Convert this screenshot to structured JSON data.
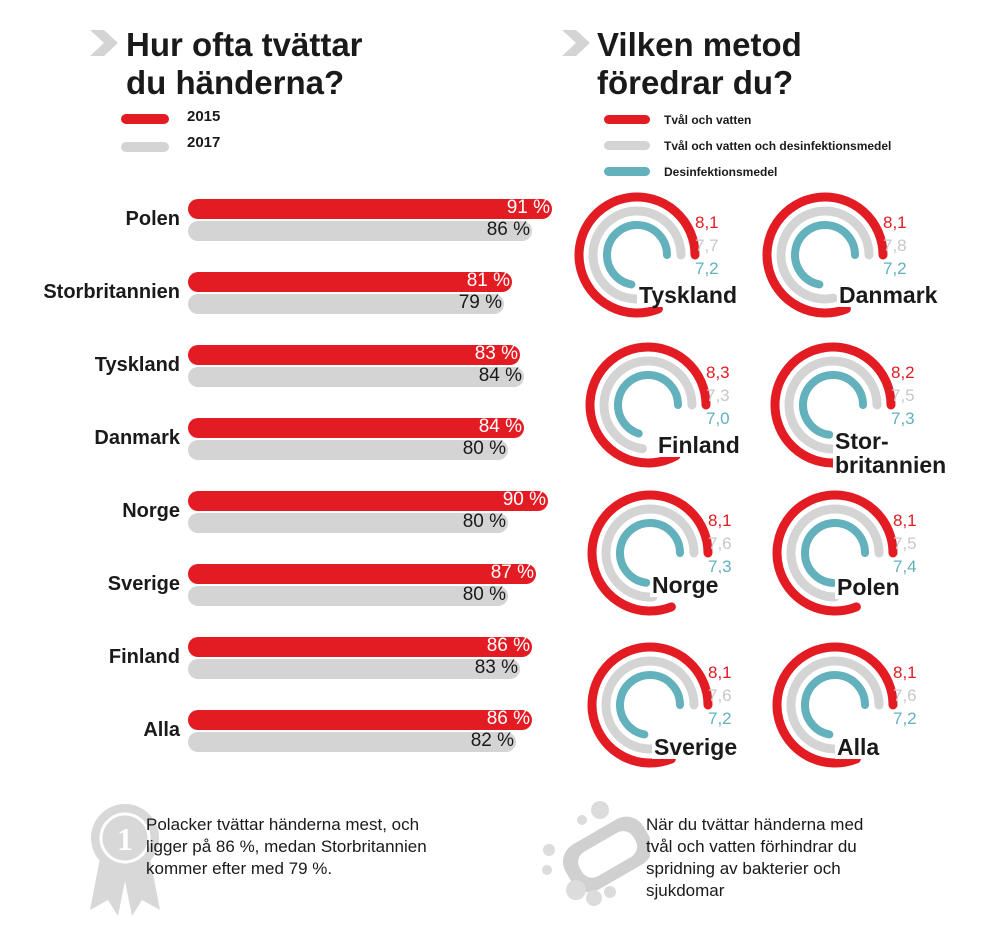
{
  "left_title": [
    "Hur ofta tvättar",
    "du händerna?"
  ],
  "right_title": [
    "Vilken metod",
    "föredrar du?"
  ],
  "colors": {
    "red": "#e31b23",
    "gray": "#d4d4d4",
    "teal": "#62b1bc",
    "text": "#1a1a1a"
  },
  "chart_data": [
    {
      "type": "bar",
      "title": "Hur ofta tvättar du händerna?",
      "categories": [
        "Polen",
        "Storbritannien",
        "Tyskland",
        "Danmark",
        "Norge",
        "Sverige",
        "Finland",
        "Alla"
      ],
      "series": [
        {
          "name": "2015",
          "values": [
            91,
            81,
            83,
            84,
            90,
            87,
            86,
            86
          ],
          "labels": [
            "91 %",
            "81 %",
            "83 %",
            "84 %",
            "90 %",
            "87 %",
            "86 %",
            "86 %"
          ]
        },
        {
          "name": "2017",
          "values": [
            86,
            79,
            84,
            80,
            80,
            80,
            83,
            82
          ],
          "labels": [
            "86 %",
            "79 %",
            "84 %",
            "80 %",
            "80 %",
            "80 %",
            "83 %",
            "82 %"
          ]
        }
      ],
      "xlim": [
        0,
        100
      ],
      "legend_position": "top-left"
    },
    {
      "type": "radial-bar",
      "title": "Vilken metod föredrar du?",
      "series_names": [
        "Tvål och vatten",
        "Tvål och vatten och desinfektionsmedel",
        "Desinfektionsmedel"
      ],
      "scale_max": 10,
      "panels": [
        {
          "name": [
            "Tyskland"
          ],
          "values": [
            8.1,
            7.7,
            7.2
          ],
          "labels": [
            "8,1",
            "7,7",
            "7,2"
          ]
        },
        {
          "name": [
            "Danmark"
          ],
          "values": [
            8.1,
            7.8,
            7.2
          ],
          "labels": [
            "8,1",
            "7,8",
            "7,2"
          ]
        },
        {
          "name": [
            "Finland"
          ],
          "values": [
            8.3,
            7.3,
            7.0
          ],
          "labels": [
            "8,3",
            "7,3",
            "7,0"
          ]
        },
        {
          "name": [
            "Stor-",
            "britannien"
          ],
          "values": [
            8.2,
            7.5,
            7.3
          ],
          "labels": [
            "8,2",
            "7,5",
            "7,3"
          ]
        },
        {
          "name": [
            "Norge"
          ],
          "values": [
            8.1,
            7.6,
            7.3
          ],
          "labels": [
            "8,1",
            "7,6",
            "7,3"
          ]
        },
        {
          "name": [
            "Polen"
          ],
          "values": [
            8.1,
            7.5,
            7.4
          ],
          "labels": [
            "8,1",
            "7,5",
            "7,4"
          ]
        },
        {
          "name": [
            "Sverige"
          ],
          "values": [
            8.1,
            7.6,
            7.2
          ],
          "labels": [
            "8,1",
            "7,6",
            "7,2"
          ]
        },
        {
          "name": [
            "Alla"
          ],
          "values": [
            8.1,
            7.6,
            7.2
          ],
          "labels": [
            "8,1",
            "7,6",
            "7,2"
          ]
        }
      ],
      "legend_position": "top"
    }
  ],
  "notes": {
    "left": [
      "Polacker tvättar händerna mest, och",
      "ligger på 86 %, medan Storbritannien",
      "kommer efter med 79 %."
    ],
    "right": [
      "När du tvättar händerna med",
      "tvål och vatten förhindrar du",
      "spridning av bakterier och",
      "sjukdomar"
    ]
  },
  "icons": {
    "left_note": "award-ribbon-icon",
    "right_note": "soap-icon",
    "title_marker": "chevron-right-icon"
  }
}
